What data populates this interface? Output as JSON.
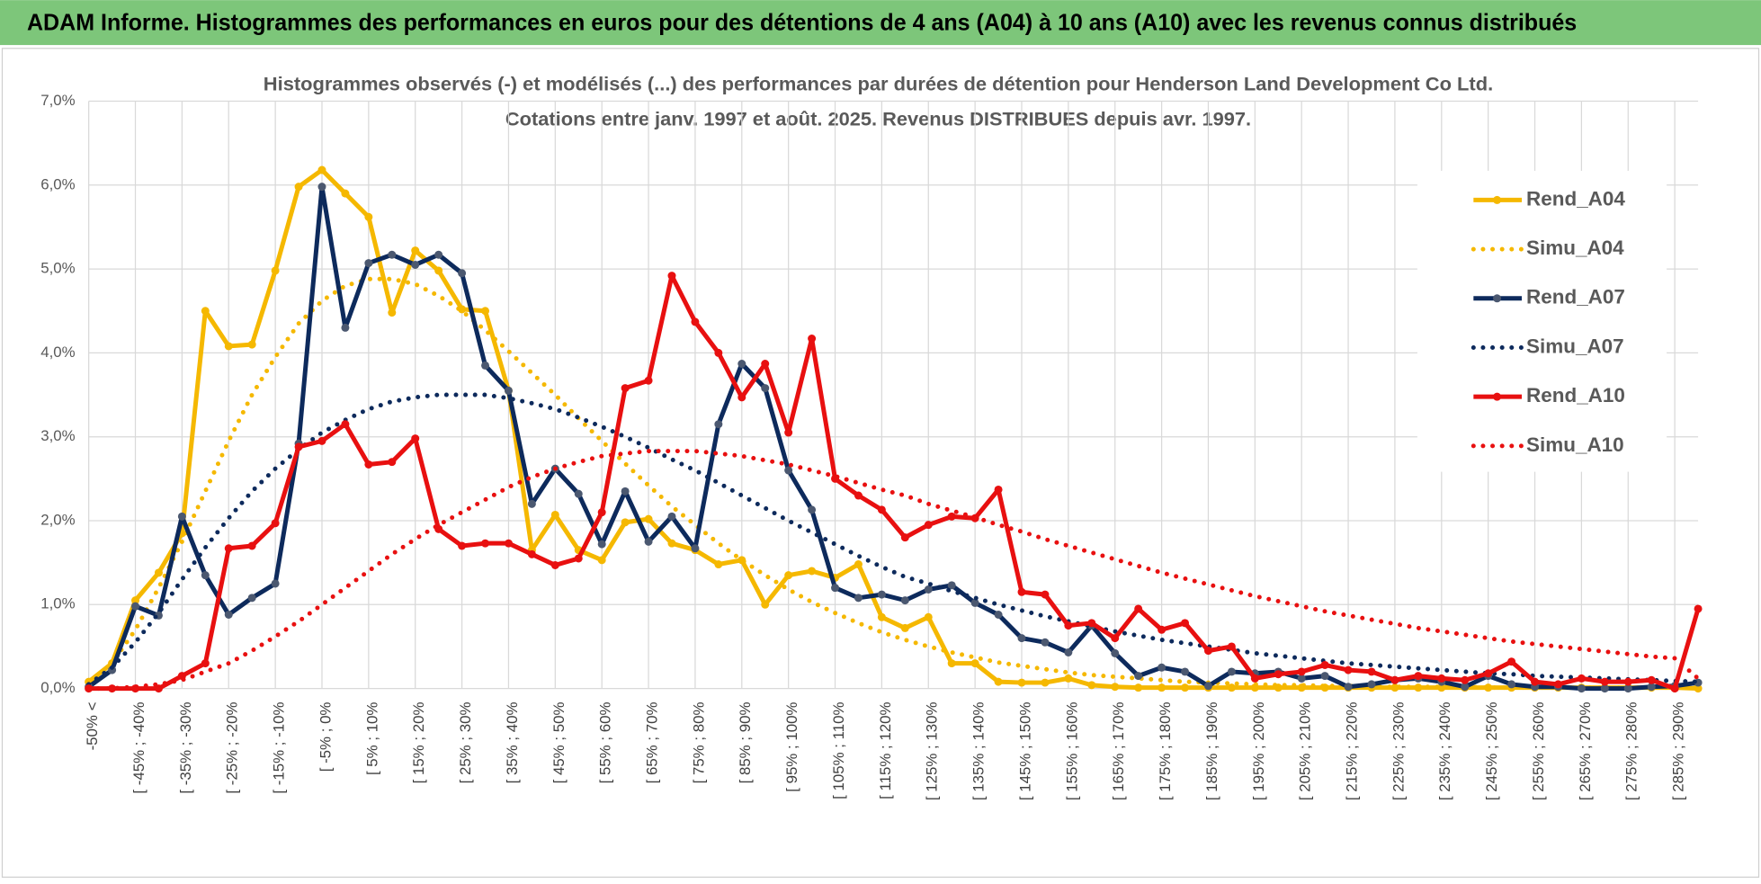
{
  "page_title": "ADAM Informe. Histogrammes des performances en euros pour des détentions de 4 ans (A04) à 10 ans (A10) avec les revenus connus distribués",
  "chart_data": {
    "type": "line",
    "title": "Histogrammes observés (-) et modélisés (...)  des performances par durées de détention pour Henderson Land Development Co Ltd.",
    "subtitle": "Cotations entre janv. 1997 et août. 2025. Revenus DISTRIBUES depuis avr. 1997.",
    "categories": [
      "-50% <",
      null,
      "[ -45% ; -40%",
      null,
      "[ -35% ; -30%",
      null,
      "[ -25% ; -20%",
      null,
      "[ -15% ; -10%",
      null,
      "[ -5% ; 0%",
      null,
      "[ 5% ; 10%",
      null,
      "[ 15% ; 20%",
      null,
      "[ 25% ; 30%",
      null,
      "[ 35% ; 40%",
      null,
      "[ 45% ; 50%",
      null,
      "[ 55% ; 60%",
      null,
      "[ 65% ; 70%",
      null,
      "[ 75% ; 80%",
      null,
      "[ 85% ; 90%",
      null,
      "[ 95% ; 100%",
      null,
      "[ 105% ; 110%",
      null,
      "[ 115% ; 120%",
      null,
      "[ 125% ; 130%",
      null,
      "[ 135% ; 140%",
      null,
      "[ 145% ; 150%",
      null,
      "[ 155% ; 160%",
      null,
      "[ 165% ; 170%",
      null,
      "[ 175% ; 180%",
      null,
      "[ 185% ; 190%",
      null,
      "[ 195% ; 200%",
      null,
      "[ 205% ; 210%",
      null,
      "[ 215% ; 220%",
      null,
      "[ 225% ; 230%",
      null,
      "[ 235% ; 240%",
      null,
      "[ 245% ; 250%",
      null,
      "[ 255% ; 260%",
      null,
      "[ 265% ; 270%",
      null,
      "[ 275% ; 280%",
      null,
      "[ 285% ; 290%",
      null
    ],
    "series": [
      {
        "name": "Rend_A04",
        "color": "#f5b800",
        "line_style": "solid",
        "markers": true,
        "values": [
          0.08,
          0.3,
          1.05,
          1.38,
          1.85,
          4.5,
          4.08,
          4.1,
          4.98,
          5.98,
          6.18,
          5.9,
          5.62,
          4.48,
          5.22,
          4.98,
          4.52,
          4.5,
          3.55,
          1.65,
          2.07,
          1.65,
          1.53,
          1.98,
          2.02,
          1.73,
          1.65,
          1.48,
          1.53,
          1.0,
          1.35,
          1.4,
          1.32,
          1.48,
          0.85,
          0.72,
          0.85,
          0.3,
          0.3,
          0.08,
          0.07,
          0.07,
          0.12,
          0.04,
          0.02,
          0.01,
          0.01,
          0.01,
          0.01,
          0.01,
          0.01,
          0.01,
          0.01,
          0.01,
          0.01,
          0.01,
          0.01,
          0.01,
          0.01,
          0.01,
          0.01,
          0.01,
          0.01,
          0.01,
          0.01,
          0.01,
          0.01,
          0.01,
          0.01,
          0.0
        ]
      },
      {
        "name": "Simu_A04",
        "color": "#f5b800",
        "line_style": "dotted",
        "markers": false,
        "values": [
          0.05,
          0.3,
          0.7,
          1.2,
          1.75,
          2.35,
          2.95,
          3.5,
          3.95,
          4.35,
          4.62,
          4.8,
          4.88,
          4.88,
          4.82,
          4.68,
          4.5,
          4.27,
          4.02,
          3.76,
          3.5,
          3.22,
          2.95,
          2.68,
          2.42,
          2.17,
          1.95,
          1.73,
          1.53,
          1.35,
          1.18,
          1.03,
          0.9,
          0.78,
          0.67,
          0.58,
          0.5,
          0.43,
          0.37,
          0.31,
          0.27,
          0.23,
          0.19,
          0.16,
          0.14,
          0.12,
          0.1,
          0.08,
          0.07,
          0.06,
          0.05,
          0.04,
          0.04,
          0.03,
          0.03,
          0.02,
          0.02,
          0.02,
          0.02,
          0.02,
          0.01,
          0.01,
          0.01,
          0.01,
          0.01,
          0.01,
          0.01,
          0.01,
          0.01,
          0.01
        ]
      },
      {
        "name": "Rend_A07",
        "color": "#0d2a5c",
        "marker_color": "#4b5870",
        "line_style": "solid",
        "markers": true,
        "values": [
          0.02,
          0.22,
          0.98,
          0.87,
          2.05,
          1.35,
          0.88,
          1.08,
          1.25,
          2.92,
          5.98,
          4.3,
          5.07,
          5.17,
          5.05,
          5.17,
          4.95,
          3.85,
          3.55,
          2.2,
          2.62,
          2.32,
          1.72,
          2.35,
          1.75,
          2.05,
          1.67,
          3.15,
          3.87,
          3.58,
          2.6,
          2.13,
          1.2,
          1.08,
          1.12,
          1.05,
          1.18,
          1.23,
          1.02,
          0.88,
          0.6,
          0.55,
          0.43,
          0.75,
          0.42,
          0.15,
          0.25,
          0.2,
          0.03,
          0.2,
          0.18,
          0.2,
          0.12,
          0.15,
          0.02,
          0.05,
          0.1,
          0.12,
          0.08,
          0.02,
          0.15,
          0.05,
          0.02,
          0.02,
          0.0,
          0.0,
          0.0,
          0.02,
          0.03,
          0.07
        ]
      },
      {
        "name": "Simu_A07",
        "color": "#0d2a5c",
        "line_style": "dotted",
        "markers": false,
        "values": [
          0.05,
          0.25,
          0.55,
          0.9,
          1.3,
          1.68,
          2.03,
          2.35,
          2.62,
          2.85,
          3.05,
          3.2,
          3.33,
          3.42,
          3.47,
          3.5,
          3.5,
          3.5,
          3.46,
          3.4,
          3.33,
          3.23,
          3.12,
          3.0,
          2.87,
          2.73,
          2.6,
          2.45,
          2.3,
          2.15,
          2.0,
          1.86,
          1.72,
          1.58,
          1.45,
          1.33,
          1.25,
          1.16,
          1.08,
          1.0,
          0.93,
          0.86,
          0.8,
          0.74,
          0.68,
          0.63,
          0.58,
          0.54,
          0.5,
          0.46,
          0.42,
          0.39,
          0.36,
          0.33,
          0.3,
          0.28,
          0.26,
          0.24,
          0.22,
          0.2,
          0.18,
          0.17,
          0.15,
          0.14,
          0.13,
          0.12,
          0.11,
          0.1,
          0.09,
          0.08
        ]
      },
      {
        "name": "Rend_A10",
        "color": "#e81010",
        "line_style": "solid",
        "markers": true,
        "values": [
          0,
          0,
          0,
          0,
          0.15,
          0.3,
          1.67,
          1.7,
          1.97,
          2.88,
          2.95,
          3.15,
          2.67,
          2.7,
          2.98,
          1.9,
          1.7,
          1.73,
          1.73,
          1.6,
          1.47,
          1.55,
          2.1,
          3.58,
          3.67,
          4.92,
          4.37,
          4.0,
          3.47,
          3.87,
          3.05,
          4.17,
          2.5,
          2.3,
          2.13,
          1.8,
          1.95,
          2.05,
          2.03,
          2.37,
          1.15,
          1.12,
          0.75,
          0.78,
          0.6,
          0.95,
          0.7,
          0.78,
          0.45,
          0.5,
          0.12,
          0.17,
          0.2,
          0.28,
          0.22,
          0.2,
          0.1,
          0.15,
          0.12,
          0.1,
          0.18,
          0.32,
          0.08,
          0.05,
          0.12,
          0.08,
          0.08,
          0.1,
          0.0,
          0.95
        ]
      },
      {
        "name": "Simu_A10",
        "color": "#e81010",
        "line_style": "dotted",
        "markers": false,
        "values": [
          0,
          0,
          0.02,
          0.05,
          0.1,
          0.2,
          0.3,
          0.45,
          0.62,
          0.8,
          1.0,
          1.2,
          1.4,
          1.6,
          1.78,
          1.95,
          2.1,
          2.25,
          2.4,
          2.52,
          2.62,
          2.7,
          2.77,
          2.8,
          2.83,
          2.83,
          2.83,
          2.8,
          2.77,
          2.72,
          2.67,
          2.6,
          2.53,
          2.45,
          2.37,
          2.3,
          2.2,
          2.12,
          2.04,
          1.95,
          1.87,
          1.78,
          1.7,
          1.62,
          1.54,
          1.46,
          1.38,
          1.31,
          1.24,
          1.17,
          1.1,
          1.04,
          0.98,
          0.92,
          0.87,
          0.82,
          0.77,
          0.72,
          0.68,
          0.64,
          0.6,
          0.56,
          0.53,
          0.5,
          0.47,
          0.44,
          0.41,
          0.38,
          0.36,
          0.12
        ]
      }
    ],
    "ylim": [
      0,
      7
    ],
    "yticks": [
      {
        "value": 0,
        "label": "0,0%"
      },
      {
        "value": 1,
        "label": "1,0%"
      },
      {
        "value": 2,
        "label": "2,0%"
      },
      {
        "value": 3,
        "label": "3,0%"
      },
      {
        "value": 4,
        "label": "4,0%"
      },
      {
        "value": 5,
        "label": "5,0%"
      },
      {
        "value": 6,
        "label": "6,0%"
      },
      {
        "value": 7,
        "label": "7,0%"
      }
    ],
    "grid": true,
    "legend": "right"
  }
}
